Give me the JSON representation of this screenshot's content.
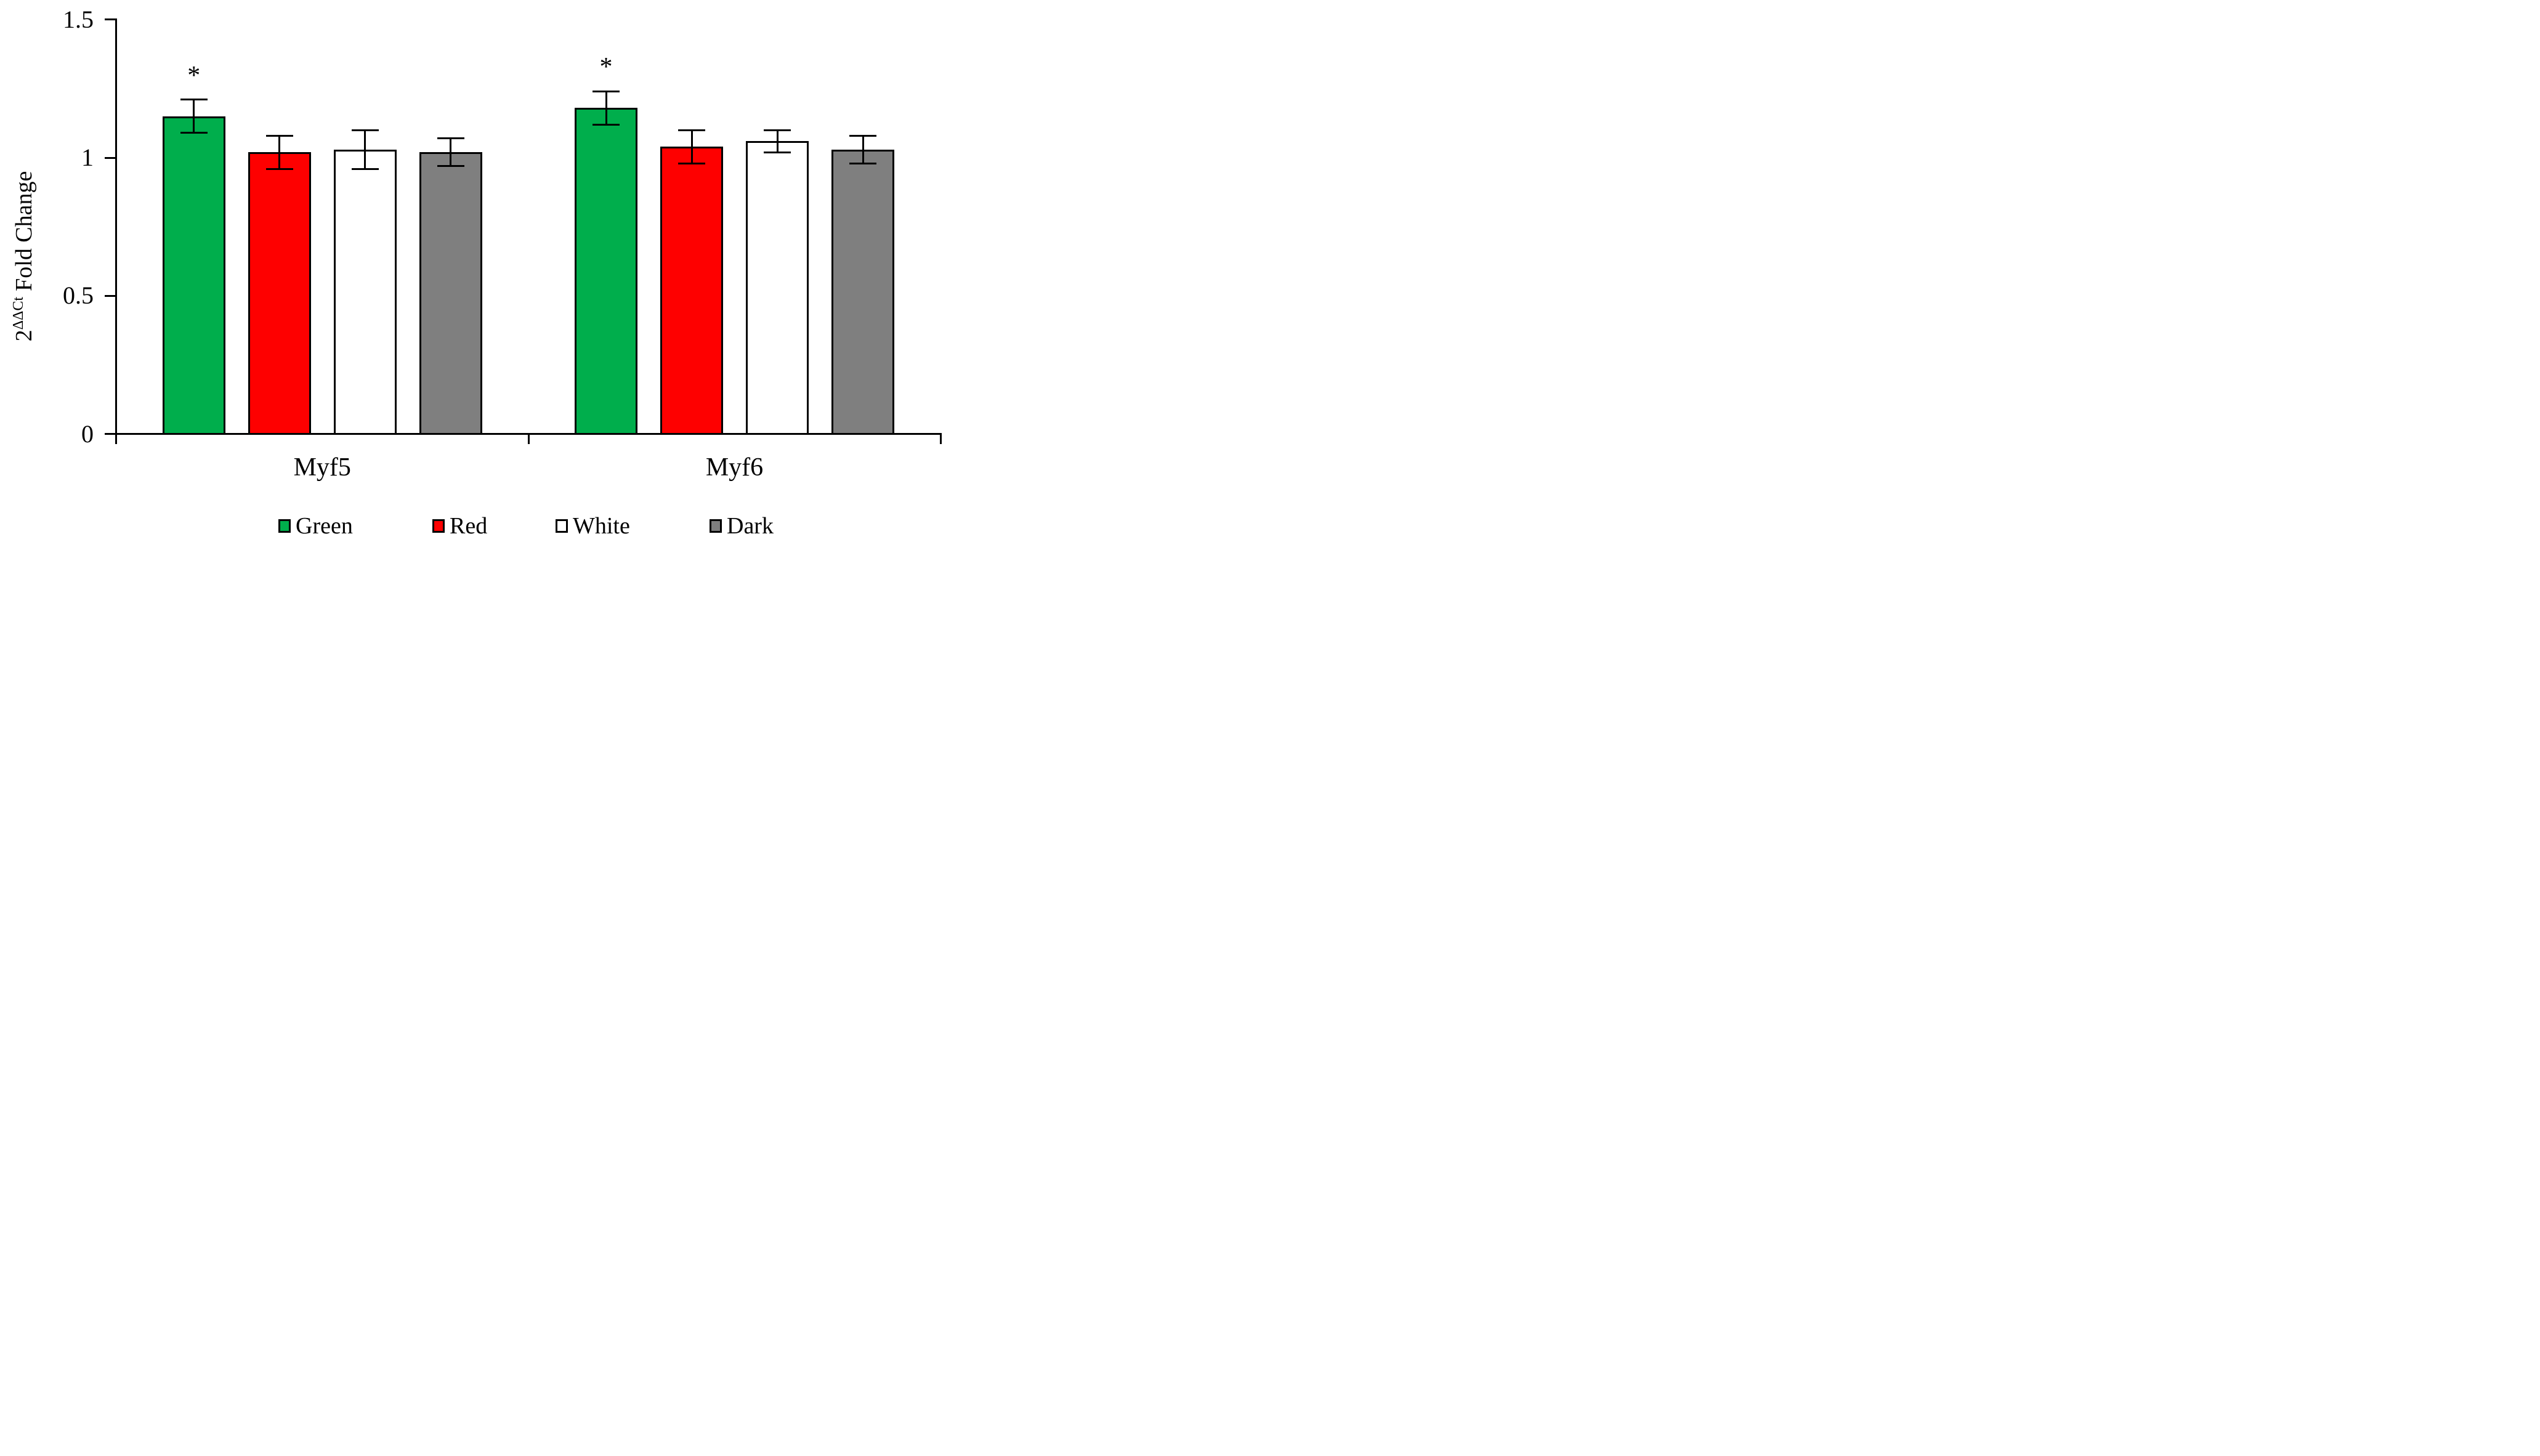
{
  "figure": {
    "background": "#ffffff",
    "axis_color": "#000000"
  },
  "chart_data": {
    "type": "bar",
    "title": "",
    "ylabel": "2^(ΔΔCt) Fold Change",
    "ylabel_parts": {
      "base": "2",
      "sup": "ΔΔCt",
      "rest": "Fold Change"
    },
    "xlabel": "",
    "categories": [
      "Myf5",
      "Myf6"
    ],
    "series": [
      {
        "name": "Green",
        "color": "#00AE4C",
        "values": [
          1.15,
          1.18
        ],
        "errors": [
          0.06,
          0.06
        ],
        "significant": [
          true,
          true
        ]
      },
      {
        "name": "Red",
        "color": "#FE0000",
        "values": [
          1.02,
          1.04
        ],
        "errors": [
          0.06,
          0.06
        ],
        "significant": [
          false,
          false
        ]
      },
      {
        "name": "White",
        "color": "#FFFFFF",
        "values": [
          1.03,
          1.06
        ],
        "errors": [
          0.07,
          0.04
        ],
        "significant": [
          false,
          false
        ]
      },
      {
        "name": "Dark",
        "color": "#7F7F7F",
        "values": [
          1.02,
          1.03
        ],
        "errors": [
          0.05,
          0.05
        ],
        "significant": [
          false,
          false
        ]
      }
    ],
    "y_axis": {
      "min": 0,
      "max": 1.5,
      "ticks": [
        0,
        0.5,
        1,
        1.5
      ],
      "tick_labels": [
        "0",
        "0.5",
        "1",
        "1.5"
      ]
    },
    "significance_marker": "*",
    "error_bars": "symmetric",
    "grid": false,
    "legend": {
      "position": "bottom",
      "entries": [
        "Green",
        "Red",
        "White",
        "Dark"
      ]
    }
  }
}
